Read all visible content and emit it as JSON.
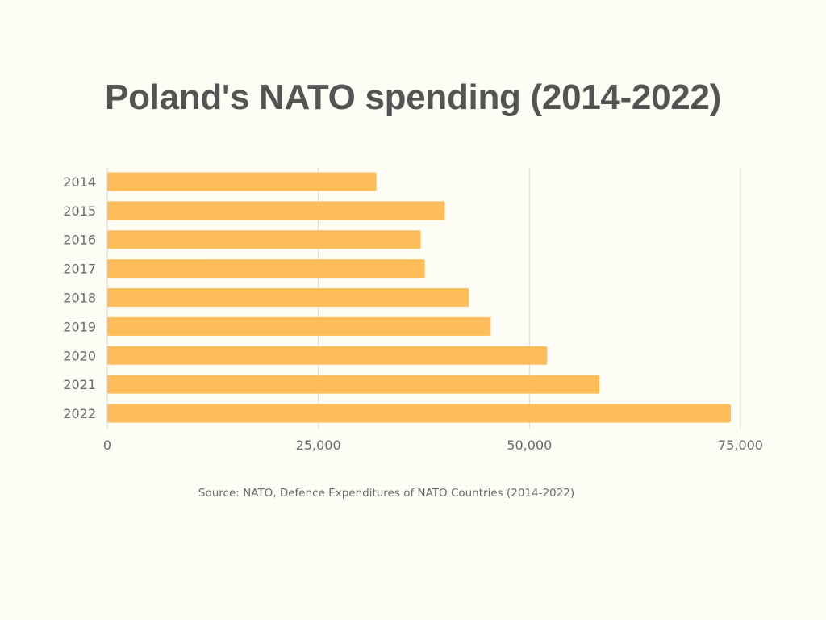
{
  "chart_data": {
    "type": "bar",
    "orientation": "horizontal",
    "title": "Poland's NATO spending (2014-2022)",
    "xlabel": "",
    "ylabel": "",
    "categories": [
      "2014",
      "2015",
      "2016",
      "2017",
      "2018",
      "2019",
      "2020",
      "2021",
      "2022"
    ],
    "values": [
      31870,
      39980,
      37120,
      37600,
      42840,
      45420,
      52100,
      58300,
      73850
    ],
    "xlim": [
      0,
      75000
    ],
    "xticks": [
      0,
      25000,
      50000,
      75000
    ],
    "xtick_labels": [
      "0",
      "25,000",
      "50,000",
      "75,000"
    ],
    "grid": true,
    "legend": "none",
    "bar_color": "#ffbc5a",
    "grid_color": "#dcdcd4",
    "source": "Source: NATO, Defence Expenditures of NATO Countries (2014-2022)"
  }
}
